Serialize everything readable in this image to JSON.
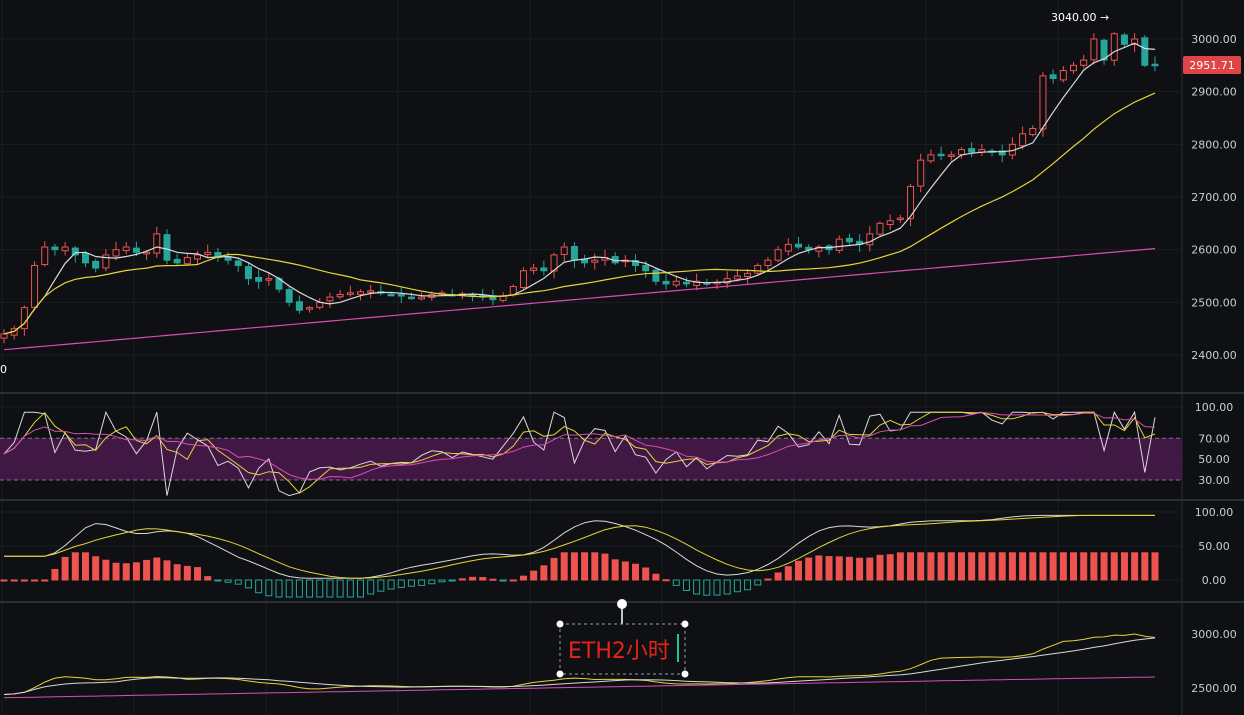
{
  "chart_data": {
    "type": "candlestick",
    "colors": {
      "up": "#ef5350",
      "down": "#26a69a",
      "ma_fast": "#d9d9d9",
      "ma_mid": "#e8d33a",
      "ma_slow": "#d74fb4",
      "rsi_band": "#4a1a4e",
      "annotation": "#e8231d",
      "badge": "#e04545"
    },
    "price_axis": {
      "ticks": [
        "3000.00",
        "2900.00",
        "2800.00",
        "2700.00",
        "2600.00",
        "2500.00",
        "2400.00"
      ],
      "ylim": [
        2380,
        3060
      ]
    },
    "last_price": "2951.71",
    "high_label": "3040.00 →",
    "left_cut_label": "0",
    "annotation_text": "ETH2小时",
    "rsi_axis": {
      "ticks": [
        "100.00",
        "70.00",
        "50.00",
        "30.00"
      ],
      "ylim": [
        10,
        100
      ],
      "band": [
        30,
        70
      ]
    },
    "osc_axis": {
      "ticks": [
        "100.00",
        "50.00",
        "0.00"
      ],
      "ylim": [
        -30,
        110
      ]
    },
    "mini_axis": {
      "ticks": [
        "3000.00",
        "2500.00"
      ]
    },
    "closes": [
      2440,
      2450,
      2490,
      2570,
      2605,
      2600,
      2605,
      2590,
      2575,
      2565,
      2590,
      2600,
      2605,
      2595,
      2595,
      2630,
      2580,
      2575,
      2585,
      2590,
      2595,
      2585,
      2580,
      2570,
      2545,
      2540,
      2545,
      2525,
      2500,
      2485,
      2490,
      2500,
      2510,
      2515,
      2518,
      2520,
      2522,
      2518,
      2515,
      2512,
      2508,
      2510,
      2515,
      2518,
      2515,
      2516,
      2514,
      2510,
      2505,
      2512,
      2530,
      2560,
      2565,
      2560,
      2590,
      2605,
      2580,
      2575,
      2580,
      2585,
      2575,
      2580,
      2570,
      2560,
      2540,
      2535,
      2540,
      2535,
      2540,
      2536,
      2538,
      2545,
      2550,
      2555,
      2570,
      2580,
      2600,
      2610,
      2605,
      2600,
      2605,
      2600,
      2620,
      2615,
      2610,
      2630,
      2650,
      2655,
      2660,
      2720,
      2770,
      2780,
      2780,
      2780,
      2790,
      2785,
      2790,
      2785,
      2780,
      2800,
      2820,
      2830,
      2930,
      2925,
      2940,
      2950,
      2960,
      3000,
      2960,
      3010,
      2990,
      3000,
      2950,
      2951.71
    ]
  }
}
